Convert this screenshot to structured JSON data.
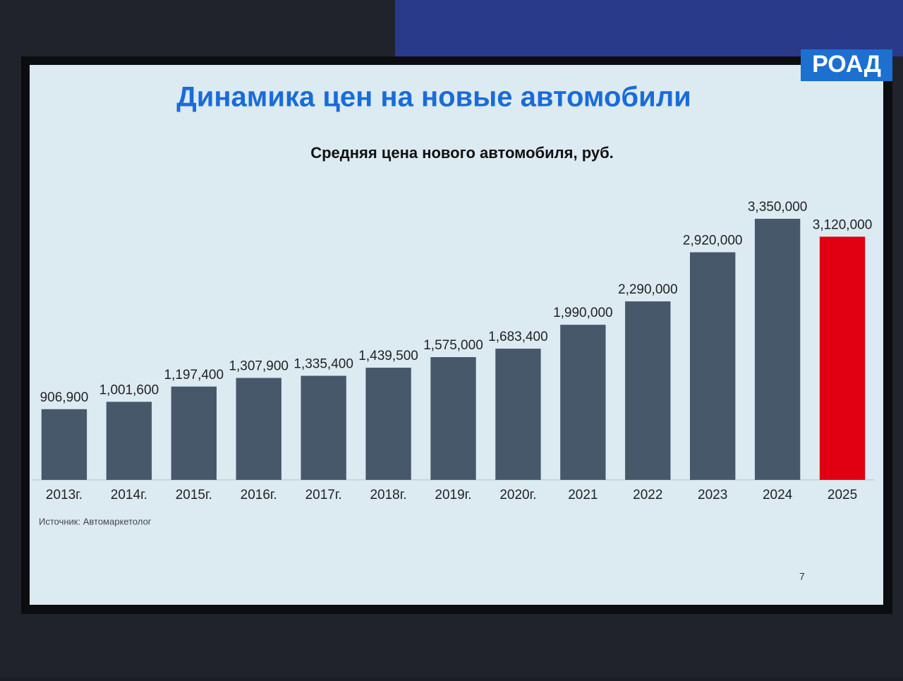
{
  "logo": "РОАД",
  "page_number": 7,
  "source": "Источник: Автомаркетолог",
  "chart_data": {
    "type": "bar",
    "title": "Динамика цен на новые автомобили",
    "subtitle": "Средняя цена нового автомобиля, руб.",
    "categories": [
      "2013г.",
      "2014г.",
      "2015г.",
      "2016г.",
      "2017г.",
      "2018г.",
      "2019г.",
      "2020г.",
      "2021",
      "2022",
      "2023",
      "2024",
      "2025"
    ],
    "values": [
      906900,
      1001600,
      1197400,
      1307900,
      1335400,
      1439500,
      1575000,
      1683400,
      1990000,
      2290000,
      2920000,
      3350000,
      3120000
    ],
    "value_labels": [
      "906,900",
      "1,001,600",
      "1,197,400",
      "1,307,900",
      "1,335,400",
      "1,439,500",
      "1,575,000",
      "1,683,400",
      "1,990,000",
      "2,290,000",
      "2,920,000",
      "3,350,000",
      "3,120,000"
    ],
    "colors": [
      "#47586a",
      "#47586a",
      "#47586a",
      "#47586a",
      "#47586a",
      "#47586a",
      "#47586a",
      "#47586a",
      "#47586a",
      "#47586a",
      "#47586a",
      "#47586a",
      "#e00012"
    ]
  }
}
